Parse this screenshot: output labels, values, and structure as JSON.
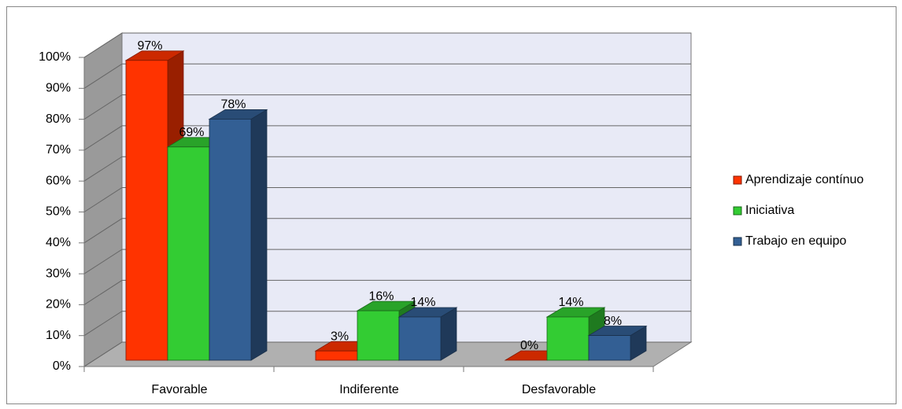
{
  "chart_data": {
    "type": "bar3d",
    "categories": [
      "Favorable",
      "Indiferente",
      "Desfavorable"
    ],
    "series": [
      {
        "name": "Aprendizaje contínuo",
        "color": "#ff3300",
        "values": [
          97,
          3,
          0
        ],
        "value_labels": [
          "97%",
          "3%",
          "0%"
        ]
      },
      {
        "name": "Iniciativa",
        "color": "#33cc33",
        "values": [
          69,
          16,
          14
        ],
        "value_labels": [
          "69%",
          "16%",
          "14%"
        ]
      },
      {
        "name": "Trabajo en equipo",
        "color": "#335f94",
        "values": [
          78,
          14,
          8
        ],
        "value_labels": [
          "78%",
          "14%",
          "8%"
        ]
      }
    ],
    "ylim": [
      0,
      100
    ],
    "yticks": [
      {
        "value": 0,
        "label": "0%"
      },
      {
        "value": 10,
        "label": "10%"
      },
      {
        "value": 20,
        "label": "20%"
      },
      {
        "value": 30,
        "label": "30%"
      },
      {
        "value": 40,
        "label": "40%"
      },
      {
        "value": 50,
        "label": "50%"
      },
      {
        "value": 60,
        "label": "60%"
      },
      {
        "value": 70,
        "label": "70%"
      },
      {
        "value": 80,
        "label": "80%"
      },
      {
        "value": 90,
        "label": "90%"
      },
      {
        "value": 100,
        "label": "100%"
      }
    ],
    "grid": true,
    "legend": "right"
  }
}
